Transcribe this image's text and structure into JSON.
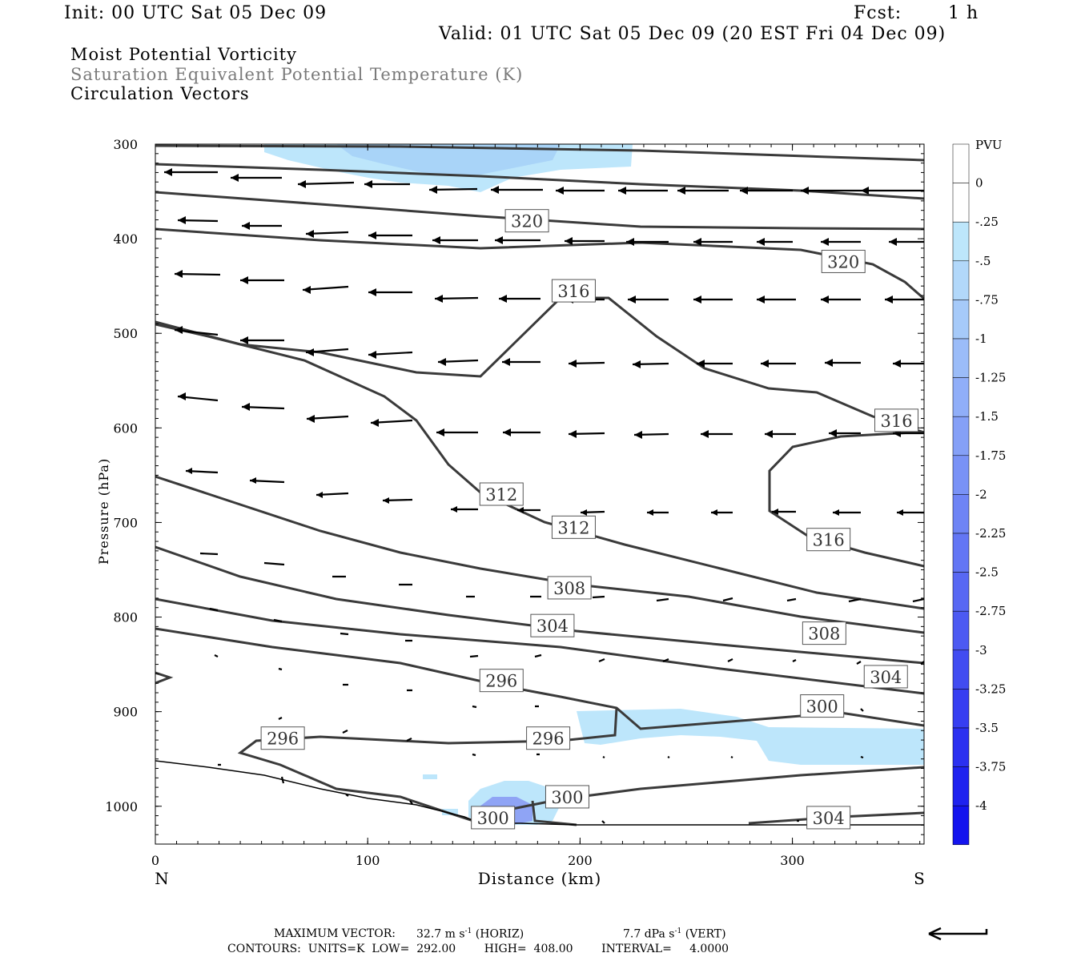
{
  "header": {
    "init": "Init: 00 UTC Sat 05 Dec 09",
    "fcst_label": "Fcst:",
    "fcst_value": "1 h",
    "valid": "Valid: 01 UTC Sat 05 Dec 09 (20 EST Fri 04 Dec 09)"
  },
  "legend_lines": [
    "Moist Potential Vorticity",
    "Saturation Equivalent Potential Temperature (K)",
    "Circulation Vectors"
  ],
  "colors": {
    "title_text": "#000000",
    "legend_second_line": "#7a7a7a",
    "contour": "#3a3a3a",
    "shade_light": "#bde6fb",
    "shade_dark": "#1414ee"
  },
  "chart_data": {
    "type": "contour",
    "xlabel": "Distance (km)",
    "ylabel": "Pressure (hPa)",
    "x_ticks": [
      "0",
      "100",
      "200",
      "300"
    ],
    "y_ticks": [
      "300",
      "400",
      "500",
      "600",
      "700",
      "800",
      "900",
      "1000"
    ],
    "xlim": [
      0,
      362
    ],
    "ylim": [
      300,
      1040
    ],
    "x_end_labels": {
      "left": "N",
      "right": "S"
    },
    "colorbar": {
      "unit": "PVU",
      "labels": [
        "0",
        "-.25",
        "-.5",
        "-.75",
        "-1",
        "-1.25",
        "-1.5",
        "-1.75",
        "-2",
        "-2.25",
        "-2.5",
        "-2.75",
        "-3",
        "-3.25",
        "-3.5",
        "-3.75",
        "-4"
      ]
    },
    "contour_labels": [
      {
        "text": "320",
        "x": 175,
        "p": 381
      },
      {
        "text": "320",
        "x": 324,
        "p": 424
      },
      {
        "text": "316",
        "x": 197,
        "p": 455
      },
      {
        "text": "316",
        "x": 349,
        "p": 592
      },
      {
        "text": "316",
        "x": 317,
        "p": 718
      },
      {
        "text": "312",
        "x": 163,
        "p": 670
      },
      {
        "text": "312",
        "x": 197,
        "p": 705
      },
      {
        "text": "308",
        "x": 195,
        "p": 769
      },
      {
        "text": "308",
        "x": 315,
        "p": 817
      },
      {
        "text": "304",
        "x": 187,
        "p": 809
      },
      {
        "text": "304",
        "x": 344,
        "p": 863
      },
      {
        "text": "300",
        "x": 314,
        "p": 894
      },
      {
        "text": "300",
        "x": 194,
        "p": 990
      },
      {
        "text": "300",
        "x": 159,
        "p": 1012
      },
      {
        "text": "304",
        "x": 317,
        "p": 1012
      },
      {
        "text": "296",
        "x": 163,
        "p": 867
      },
      {
        "text": "296",
        "x": 185,
        "p": 928
      },
      {
        "text": "296",
        "x": 60,
        "p": 928
      }
    ],
    "footer": {
      "max_vector_label": "MAXIMUM VECTOR:",
      "horiz": "32.7 m s",
      "horiz_tag": "(HORIZ)",
      "vert": "7.7 dPa s",
      "vert_tag": "(VERT)",
      "exp": "-1",
      "contours": "CONTOURS:  UNITS=K  LOW=  292.00        HIGH=  408.00        INTERVAL=     4.0000"
    }
  }
}
